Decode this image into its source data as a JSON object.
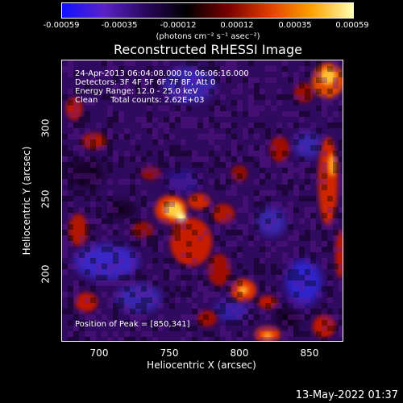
{
  "colorbar": {
    "ticks": [
      "-0.00059",
      "-0.00035",
      "-0.00012",
      "0.00012",
      "0.00035",
      "0.00059"
    ],
    "title": "(photons cm⁻² s⁻¹ asec⁻²)",
    "colors": [
      "#1010ff",
      "#5a22c8",
      "#2a0860",
      "#000000",
      "#7a0000",
      "#e04000",
      "#ffa000",
      "#ffffb0"
    ]
  },
  "title": "Reconstructed RHESSI Image",
  "info": {
    "line1": "24-Apr-2013 06:04:08.000 to 06:06:16.000",
    "line2": "Detectors: 3F 4F 5F 6F 7F 8F, Att 0",
    "line3": "Energy Range: 12.0 - 25.0 keV",
    "line4": "Clean     Total counts: 2.62E+03",
    "peak": "Position of Peak = [850,341]"
  },
  "axes": {
    "xlabel": "Heliocentric X (arcsec)",
    "ylabel": "Heliocentric Y (arcsec)",
    "xticks": [
      "700",
      "750",
      "800",
      "850"
    ],
    "yticks": [
      "300",
      "250",
      "200"
    ]
  },
  "timestamp": "13-May-2022 01:37"
}
